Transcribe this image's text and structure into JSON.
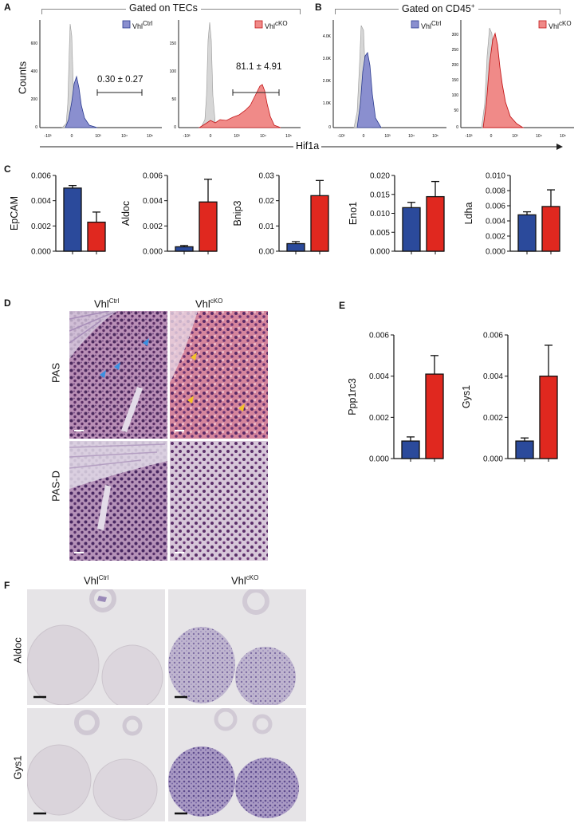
{
  "panels": {
    "A": {
      "letter": "A",
      "gate_title": "Gated on TECs",
      "ylabel": "Counts",
      "plot1": {
        "legend_base": "Vhl",
        "legend_sup": "Ctrl",
        "annotation": "0.30 ± 0.27",
        "yticks": [
          "600",
          "400",
          "200",
          "0"
        ],
        "xticks": [
          "-10³",
          "0",
          "10³",
          "10⁴",
          "10⁵"
        ]
      },
      "plot2": {
        "legend_base": "Vhl",
        "legend_sup": "cKO",
        "annotation": "81.1 ± 4.91",
        "yticks": [
          "150",
          "100",
          "50",
          "0"
        ],
        "xticks": [
          "-10³",
          "0",
          "10³",
          "10⁴",
          "10⁵"
        ]
      }
    },
    "B": {
      "letter": "B",
      "gate_title_base": "Gated on CD45",
      "gate_title_sup": "+",
      "plot1": {
        "legend_base": "Vhl",
        "legend_sup": "Ctrl",
        "yticks": [
          "4.0K",
          "3.0K",
          "2.0K",
          "1.0K",
          "0"
        ],
        "xticks": [
          "-10³",
          "0",
          "10³",
          "10⁴",
          "10⁵"
        ]
      },
      "plot2": {
        "legend_base": "Vhl",
        "legend_sup": "cKO",
        "yticks": [
          "300",
          "250",
          "200",
          "150",
          "100",
          "50",
          "0"
        ],
        "xticks": [
          "-10³",
          "0",
          "10³",
          "10⁴",
          "10⁵"
        ]
      },
      "xaxis_label": "Hif1a"
    },
    "C": {
      "letter": "C"
    },
    "D": {
      "letter": "D",
      "col_ctrl_base": "Vhl",
      "col_ctrl_sup": "Ctrl",
      "col_cko_base": "Vhl",
      "col_cko_sup": "cKO",
      "row1": "PAS",
      "row2": "PAS-D"
    },
    "E": {
      "letter": "E"
    },
    "F": {
      "letter": "F",
      "col_ctrl_base": "Vhl",
      "col_ctrl_sup": "Ctrl",
      "col_cko_base": "Vhl",
      "col_cko_sup": "cKO",
      "row1": "Aldoc",
      "row2": "Gys1"
    }
  },
  "colors": {
    "ctrl": "#2b4a9b",
    "cko": "#e0281f",
    "ctrl_hist": "#8a8fcf",
    "cko_hist": "#f08a88",
    "iso_hist": "#d6d6d6"
  },
  "chart_data": [
    {
      "type": "bar",
      "panel": "C",
      "categories": [
        "Vhl Ctrl",
        "Vhl cKO"
      ],
      "ylabel": "EpCAM",
      "values": [
        0.005,
        0.0023
      ],
      "errors": [
        0.0002,
        0.0008
      ],
      "ylim": [
        0,
        0.006
      ],
      "yticks": [
        "0.000",
        "0.002",
        "0.004",
        "0.006"
      ],
      "tickvals": [
        0,
        0.002,
        0.004,
        0.006
      ]
    },
    {
      "type": "bar",
      "panel": "C",
      "categories": [
        "Vhl Ctrl",
        "Vhl cKO"
      ],
      "ylabel": "Aldoc",
      "values": [
        0.00035,
        0.0039
      ],
      "errors": [
        0.0001,
        0.0018
      ],
      "ylim": [
        0,
        0.006
      ],
      "yticks": [
        "0.000",
        "0.002",
        "0.004",
        "0.006"
      ],
      "tickvals": [
        0,
        0.002,
        0.004,
        0.006
      ]
    },
    {
      "type": "bar",
      "panel": "C",
      "categories": [
        "Vhl Ctrl",
        "Vhl cKO"
      ],
      "ylabel": "Bnip3",
      "values": [
        0.003,
        0.022
      ],
      "errors": [
        0.0008,
        0.006
      ],
      "ylim": [
        0,
        0.03
      ],
      "yticks": [
        "0.00",
        "0.01",
        "0.02",
        "0.03"
      ],
      "tickvals": [
        0,
        0.01,
        0.02,
        0.03
      ]
    },
    {
      "type": "bar",
      "panel": "C",
      "categories": [
        "Vhl Ctrl",
        "Vhl cKO"
      ],
      "ylabel": "Eno1",
      "values": [
        0.0115,
        0.0144
      ],
      "errors": [
        0.0014,
        0.004
      ],
      "ylim": [
        0,
        0.02
      ],
      "yticks": [
        "0.000",
        "0.005",
        "0.010",
        "0.015",
        "0.020"
      ],
      "tickvals": [
        0,
        0.005,
        0.01,
        0.015,
        0.02
      ]
    },
    {
      "type": "bar",
      "panel": "C",
      "categories": [
        "Vhl Ctrl",
        "Vhl cKO"
      ],
      "ylabel": "Ldha",
      "values": [
        0.0048,
        0.0059
      ],
      "errors": [
        0.0004,
        0.0022
      ],
      "ylim": [
        0,
        0.01
      ],
      "yticks": [
        "0.000",
        "0.002",
        "0.004",
        "0.006",
        "0.008",
        "0.010"
      ],
      "tickvals": [
        0,
        0.002,
        0.004,
        0.006,
        0.008,
        0.01
      ]
    },
    {
      "type": "bar",
      "panel": "E",
      "categories": [
        "Vhl Ctrl",
        "Vhl cKO"
      ],
      "ylabel": "Ppp1rc3",
      "values": [
        0.00085,
        0.0041
      ],
      "errors": [
        0.0002,
        0.0009
      ],
      "ylim": [
        0,
        0.006
      ],
      "yticks": [
        "0.000",
        "0.002",
        "0.004",
        "0.006"
      ],
      "tickvals": [
        0,
        0.002,
        0.004,
        0.006
      ]
    },
    {
      "type": "bar",
      "panel": "E",
      "categories": [
        "Vhl Ctrl",
        "Vhl cKO"
      ],
      "ylabel": "Gys1",
      "values": [
        0.00085,
        0.004
      ],
      "errors": [
        0.00015,
        0.0015
      ],
      "ylim": [
        0,
        0.006
      ],
      "yticks": [
        "0.000",
        "0.002",
        "0.004",
        "0.006"
      ],
      "tickvals": [
        0,
        0.002,
        0.004,
        0.006
      ]
    }
  ]
}
